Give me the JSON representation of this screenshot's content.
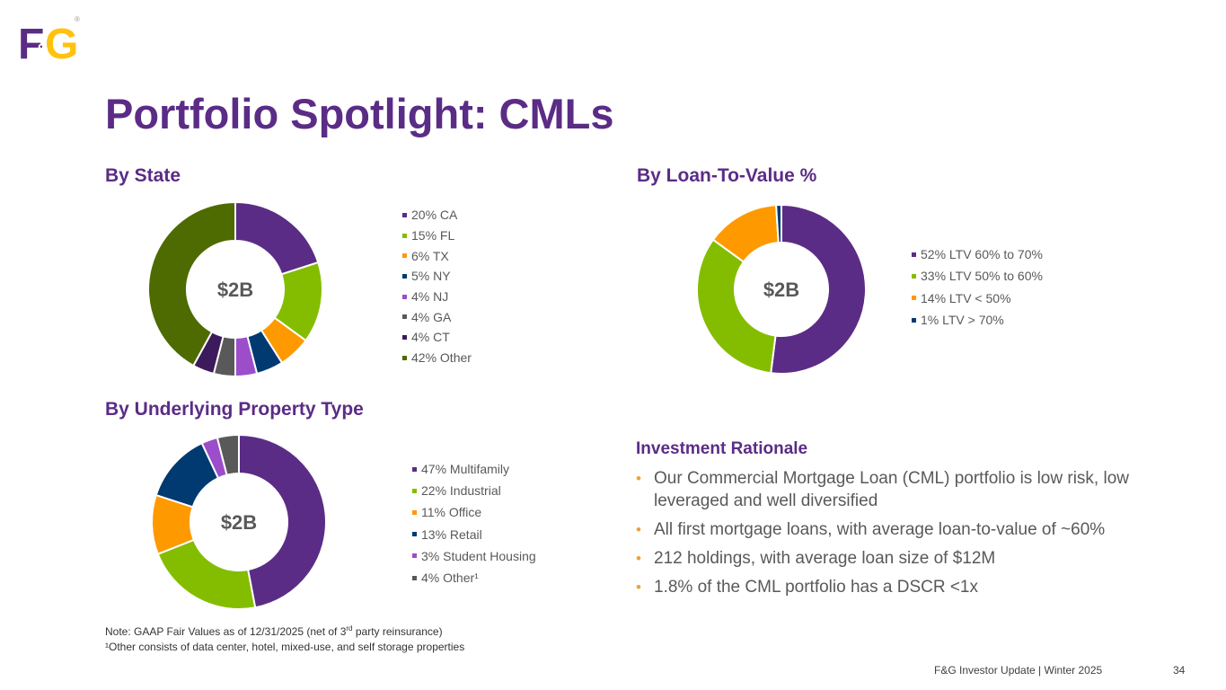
{
  "brand": {
    "logo_text_left": "F",
    "logo_text_small": "&",
    "logo_text_right": "G",
    "logo_mark": "®",
    "colors": {
      "purple": "#5B2C86",
      "gold": "#FFC20E"
    }
  },
  "page": {
    "title": "Portfolio Spotlight:  CMLs"
  },
  "chart_data": [
    {
      "type": "pie",
      "style": "donut",
      "title": "By State",
      "center_label": "$2B",
      "categories": [
        "CA",
        "FL",
        "TX",
        "NY",
        "NJ",
        "GA",
        "CT",
        "Other"
      ],
      "values": [
        20,
        15,
        6,
        5,
        4,
        4,
        4,
        42
      ],
      "labels": [
        "20% CA",
        "15% FL",
        "6% TX",
        "5% NY",
        "4% NJ",
        "4% GA",
        "4% CT",
        "42% Other"
      ],
      "colors": [
        "#5B2C86",
        "#84BD00",
        "#FF9900",
        "#003A70",
        "#9B4DCA",
        "#595959",
        "#3D1A5C",
        "#4D6B00"
      ],
      "legend_position": "right"
    },
    {
      "type": "pie",
      "style": "donut",
      "title": "By Loan-To-Value %",
      "center_label": "$2B",
      "categories": [
        "LTV 60% to 70%",
        "LTV 50% to 60%",
        "LTV < 50%",
        "LTV > 70%"
      ],
      "values": [
        52,
        33,
        14,
        1
      ],
      "labels": [
        "52% LTV 60% to 70%",
        "33% LTV 50% to 60%",
        "14% LTV < 50%",
        "1% LTV > 70%"
      ],
      "colors": [
        "#5B2C86",
        "#84BD00",
        "#FF9900",
        "#003A70"
      ],
      "legend_position": "right"
    },
    {
      "type": "pie",
      "style": "donut",
      "title": "By Underlying Property Type",
      "center_label": "$2B",
      "categories": [
        "Multifamily",
        "Industrial",
        "Office",
        "Retail",
        "Student Housing",
        "Other¹"
      ],
      "values": [
        47,
        22,
        11,
        13,
        3,
        4
      ],
      "labels": [
        "47% Multifamily",
        "22% Industrial",
        "11% Office",
        "13% Retail",
        "3% Student Housing",
        "4% Other¹"
      ],
      "colors": [
        "#5B2C86",
        "#84BD00",
        "#FF9900",
        "#003A70",
        "#9B4DCA",
        "#595959"
      ],
      "legend_position": "right"
    }
  ],
  "rationale": {
    "title": "Investment Rationale",
    "bullet_char": "•",
    "bullets": [
      "Our Commercial Mortgage Loan (CML) portfolio is low risk, low leveraged and well diversified",
      "All first mortgage loans, with average loan-to-value of ~60%",
      "212 holdings, with average loan size of $12M",
      "1.8% of the CML portfolio has a DSCR <1x"
    ]
  },
  "notes": {
    "line1_pre": "Note: GAAP Fair Values as of 12/31/2025 (net of 3",
    "line1_sup": "rd",
    "line1_post": " party reinsurance)",
    "line2": "¹Other consists of data center, hotel, mixed-use, and self storage properties"
  },
  "footer": {
    "text": "F&G Investor Update |  Winter 2025",
    "page_number": "34"
  }
}
